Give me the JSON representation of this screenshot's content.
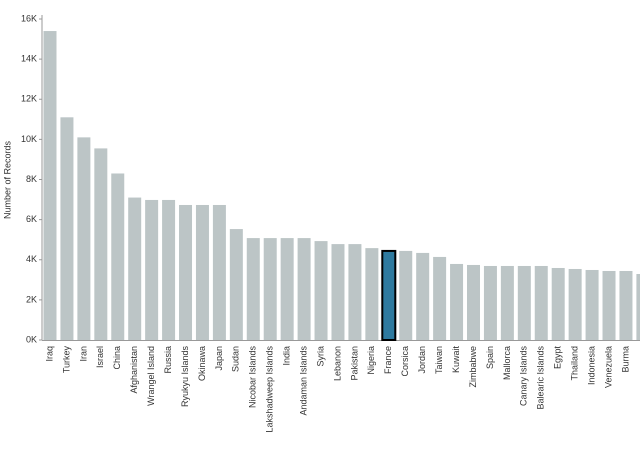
{
  "chart_data": {
    "type": "bar",
    "y_label": "Number of Records",
    "categories": [
      "Iraq",
      "Turkey",
      "Iran",
      "Israel",
      "China",
      "Afghanistan",
      "Wrangel Island",
      "Russia",
      "Ryukyu Islands",
      "Okinawa",
      "Japan",
      "Sudan",
      "Nicobar Islands",
      "Lakshadweep Islands",
      "India",
      "Andaman Islands",
      "Syria",
      "Lebanon",
      "Pakistan",
      "Nigeria",
      "France",
      "Corsica",
      "Jordan",
      "Taiwan",
      "Kuwait",
      "Zimbabwe",
      "Spain",
      "Mallorca",
      "Canary Islands",
      "Balearic Islands",
      "Egypt",
      "Thailand",
      "Indonesia",
      "Venezuela",
      "Burma",
      null
    ],
    "values": [
      15400,
      11100,
      10100,
      9550,
      8300,
      7100,
      6980,
      6980,
      6730,
      6730,
      6730,
      5530,
      5080,
      5080,
      5080,
      5080,
      4930,
      4780,
      4780,
      4580,
      4440,
      4440,
      4340,
      4140,
      3790,
      3740,
      3690,
      3690,
      3690,
      3690,
      3590,
      3540,
      3490,
      3440,
      3440,
      3290
    ],
    "color": "#bcc5c6",
    "highlight_index": 20,
    "highlight_color": "#2e7a9f",
    "ylim": [
      0,
      16000
    ],
    "yticks": [
      {
        "value": 0,
        "label": "0K"
      },
      {
        "value": 2000,
        "label": "2K"
      },
      {
        "value": 4000,
        "label": "4K"
      },
      {
        "value": 6000,
        "label": "6K"
      },
      {
        "value": 8000,
        "label": "8K"
      },
      {
        "value": 10000,
        "label": "10K"
      },
      {
        "value": 12000,
        "label": "12K"
      },
      {
        "value": 14000,
        "label": "14K"
      },
      {
        "value": 16000,
        "label": "16K"
      }
    ]
  }
}
